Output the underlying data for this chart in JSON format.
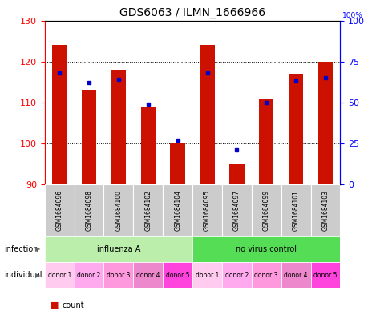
{
  "title": "GDS6063 / ILMN_1666966",
  "samples": [
    "GSM1684096",
    "GSM1684098",
    "GSM1684100",
    "GSM1684102",
    "GSM1684104",
    "GSM1684095",
    "GSM1684097",
    "GSM1684099",
    "GSM1684101",
    "GSM1684103"
  ],
  "count_values": [
    124,
    113,
    118,
    109,
    100,
    124,
    95,
    111,
    117,
    120
  ],
  "percentile_values": [
    68,
    62,
    64,
    49,
    27,
    68,
    21,
    50,
    63,
    65
  ],
  "infection_labels": [
    "influenza A",
    "no virus control"
  ],
  "infection_colors": [
    "#BBEEAA",
    "#55DD55"
  ],
  "individual_labels": [
    "donor 1",
    "donor 2",
    "donor 3",
    "donor 4",
    "donor 5",
    "donor 1",
    "donor 2",
    "donor 3",
    "donor 4",
    "donor 5"
  ],
  "individual_colors": [
    "#FFCCF0",
    "#FFAAEE",
    "#FF99DD",
    "#EE88CC",
    "#FF44DD",
    "#FFCCF0",
    "#FFAAEE",
    "#FF99DD",
    "#EE88CC",
    "#FF44DD"
  ],
  "ymin": 90,
  "ymax": 130,
  "yticks_left": [
    90,
    100,
    110,
    120,
    130
  ],
  "yticks_right": [
    0,
    25,
    50,
    75,
    100
  ],
  "bar_color": "#CC1100",
  "dot_color": "#0000CC",
  "bar_width": 0.5,
  "grid_lines": [
    100,
    110,
    120
  ],
  "grey_color": "#CCCCCC",
  "white": "#FFFFFF",
  "title_fontsize": 10,
  "tick_fontsize": 8,
  "label_fontsize": 7,
  "sample_fontsize": 5.5
}
